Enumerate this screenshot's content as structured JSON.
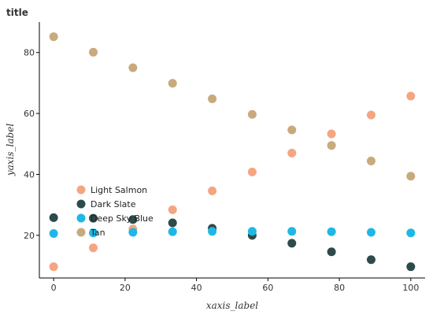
{
  "chart_data": {
    "type": "scatter",
    "title": "title",
    "xlabel": "xaxis_label",
    "ylabel": "yaxis_label",
    "xlim": [
      -4,
      104
    ],
    "ylim": [
      6,
      90
    ],
    "xticks": [
      0,
      20,
      40,
      60,
      80,
      100
    ],
    "yticks": [
      20,
      40,
      60,
      80
    ],
    "grid": false,
    "legend_position": "middle-left",
    "series": [
      {
        "name": "Light Salmon",
        "color": "#F4A582",
        "x": [
          0,
          11.1,
          22.2,
          33.3,
          44.4,
          55.6,
          66.7,
          77.8,
          88.9,
          100
        ],
        "y": [
          9.7,
          15.9,
          22.1,
          28.4,
          34.6,
          40.8,
          47.0,
          53.3,
          59.5,
          65.7
        ]
      },
      {
        "name": "Dark Slate",
        "color": "#2E4A4A",
        "x": [
          0,
          11.1,
          22.2,
          33.3,
          44.4,
          55.6,
          66.7,
          77.8,
          88.9,
          100
        ],
        "y": [
          25.8,
          25.6,
          25.2,
          24.1,
          22.3,
          20.0,
          17.4,
          14.6,
          12.0,
          9.7
        ]
      },
      {
        "name": "Deep Sky Blue",
        "color": "#1FB8E6",
        "x": [
          0,
          11.1,
          22.2,
          33.3,
          44.4,
          55.6,
          66.7,
          77.8,
          88.9,
          100
        ],
        "y": [
          20.6,
          20.8,
          21.0,
          21.2,
          21.3,
          21.3,
          21.3,
          21.2,
          21.0,
          20.8
        ]
      },
      {
        "name": "Tan",
        "color": "#C8AA7D",
        "x": [
          0,
          11.1,
          22.2,
          33.3,
          44.4,
          55.6,
          66.7,
          77.8,
          88.9,
          100
        ],
        "y": [
          85.2,
          80.1,
          75.0,
          69.9,
          64.8,
          59.7,
          54.6,
          49.5,
          44.4,
          39.4
        ]
      }
    ]
  }
}
